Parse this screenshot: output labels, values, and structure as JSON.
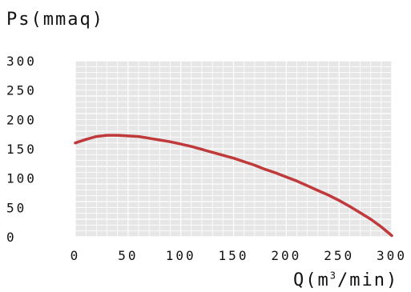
{
  "chart_data": {
    "type": "line",
    "xlabel_base": "Q(m",
    "xlabel_sup": "3",
    "xlabel_tail": "/min)",
    "ylabel": "Ps(mmaq)",
    "xlim": [
      0,
      300
    ],
    "ylim": [
      0,
      300
    ],
    "x_ticks": [
      "0",
      "50",
      "100",
      "150",
      "200",
      "250",
      "300"
    ],
    "y_ticks": [
      "0",
      "50",
      "100",
      "150",
      "200",
      "250",
      "300"
    ],
    "grid": true,
    "series": [
      {
        "color": "#c0393b",
        "points": [
          [
            0,
            160
          ],
          [
            10,
            166
          ],
          [
            20,
            171
          ],
          [
            30,
            173
          ],
          [
            40,
            173
          ],
          [
            50,
            172
          ],
          [
            60,
            171
          ],
          [
            70,
            168
          ],
          [
            80,
            165
          ],
          [
            90,
            162
          ],
          [
            100,
            158
          ],
          [
            110,
            154
          ],
          [
            120,
            149
          ],
          [
            130,
            144
          ],
          [
            140,
            139
          ],
          [
            150,
            134
          ],
          [
            160,
            128
          ],
          [
            170,
            122
          ],
          [
            180,
            115
          ],
          [
            190,
            109
          ],
          [
            200,
            102
          ],
          [
            210,
            95
          ],
          [
            220,
            87
          ],
          [
            230,
            79
          ],
          [
            240,
            71
          ],
          [
            250,
            62
          ],
          [
            260,
            52
          ],
          [
            270,
            41
          ],
          [
            280,
            30
          ],
          [
            290,
            17
          ],
          [
            300,
            2
          ]
        ]
      }
    ],
    "colors": {
      "grid_bg": "#e6e6e6",
      "grid_line": "#ffffff",
      "axis_text": "#111111"
    }
  }
}
